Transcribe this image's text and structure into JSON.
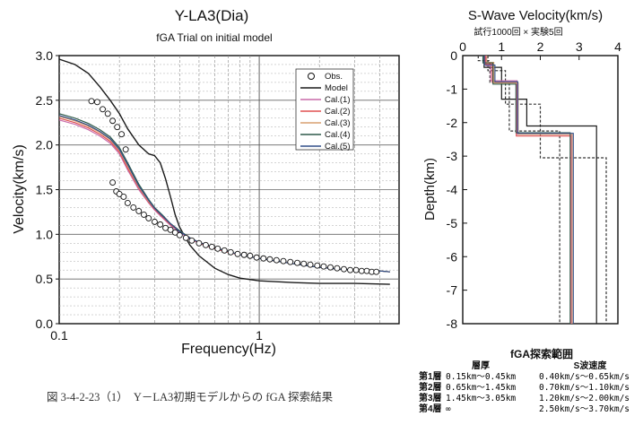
{
  "caption": "図 3-4-2-23（1）　Y－LA3初期モデルからの fGA 探索結果",
  "chart_data": [
    {
      "type": "line",
      "title": "Y-LA3(Dia)",
      "subtitle": "fGA Trial on initial model",
      "xlabel": "Frequency(Hz)",
      "ylabel": "Velocity(km/s)",
      "xscale": "log",
      "xlim": [
        0.1,
        5
      ],
      "ylim": [
        0,
        3
      ],
      "xticks": [
        {
          "v": 0.1,
          "label": "0.1"
        },
        {
          "v": 1,
          "label": "1"
        }
      ],
      "yticks": [
        {
          "v": 0,
          "label": "0.0"
        },
        {
          "v": 0.5,
          "label": "0.5"
        },
        {
          "v": 1,
          "label": "1.0"
        },
        {
          "v": 1.5,
          "label": "1.5"
        },
        {
          "v": 2,
          "label": "2.0"
        },
        {
          "v": 2.5,
          "label": "2.5"
        },
        {
          "v": 3,
          "label": "3.0"
        }
      ],
      "grid": true,
      "legend_position": "top-right",
      "observed": {
        "name": "Obs.",
        "x": [
          0.145,
          0.155,
          0.165,
          0.175,
          0.185,
          0.195,
          0.205,
          0.215,
          0.185,
          0.193,
          0.2,
          0.21,
          0.22,
          0.235,
          0.25,
          0.265,
          0.28,
          0.3,
          0.32,
          0.34,
          0.36,
          0.38,
          0.4,
          0.43,
          0.46,
          0.5,
          0.54,
          0.58,
          0.62,
          0.67,
          0.72,
          0.78,
          0.84,
          0.9,
          0.97,
          1.05,
          1.13,
          1.22,
          1.32,
          1.43,
          1.55,
          1.67,
          1.8,
          1.95,
          2.1,
          2.27,
          2.45,
          2.65,
          2.85,
          3.05,
          3.25,
          3.45,
          3.65,
          3.85
        ],
        "y": [
          2.49,
          2.48,
          2.4,
          2.35,
          2.27,
          2.2,
          2.12,
          1.95,
          1.58,
          1.48,
          1.45,
          1.42,
          1.35,
          1.3,
          1.26,
          1.22,
          1.18,
          1.14,
          1.11,
          1.07,
          1.05,
          1.02,
          0.99,
          0.96,
          0.93,
          0.9,
          0.88,
          0.86,
          0.84,
          0.82,
          0.8,
          0.78,
          0.77,
          0.76,
          0.74,
          0.73,
          0.72,
          0.71,
          0.7,
          0.69,
          0.68,
          0.67,
          0.66,
          0.65,
          0.64,
          0.63,
          0.62,
          0.61,
          0.6,
          0.6,
          0.59,
          0.59,
          0.58,
          0.58
        ]
      },
      "series": [
        {
          "name": "Model",
          "color": "#1a1a1a",
          "x": [
            0.1,
            0.12,
            0.14,
            0.16,
            0.18,
            0.2,
            0.22,
            0.25,
            0.28,
            0.3,
            0.32,
            0.34,
            0.36,
            0.38,
            0.4,
            0.45,
            0.5,
            0.6,
            0.7,
            0.8,
            1.0,
            1.5,
            2.0,
            3.0,
            4.5
          ],
          "y": [
            2.96,
            2.9,
            2.8,
            2.65,
            2.5,
            2.35,
            2.18,
            2.0,
            1.9,
            1.88,
            1.8,
            1.62,
            1.42,
            1.22,
            1.08,
            0.88,
            0.76,
            0.62,
            0.55,
            0.51,
            0.48,
            0.46,
            0.45,
            0.45,
            0.44
          ]
        },
        {
          "name": "Cal.(1)",
          "color": "#c86aa8",
          "x": [
            0.1,
            0.12,
            0.14,
            0.16,
            0.18,
            0.2,
            0.22,
            0.25,
            0.28,
            0.3,
            0.33,
            0.36,
            0.4,
            0.45,
            0.5,
            0.6,
            0.7,
            0.8,
            1.0,
            1.3,
            1.6,
            2.0,
            2.5,
            3.0,
            4.0,
            4.5
          ],
          "y": [
            2.28,
            2.23,
            2.17,
            2.1,
            2.02,
            1.9,
            1.72,
            1.5,
            1.35,
            1.27,
            1.18,
            1.1,
            1.02,
            0.95,
            0.9,
            0.84,
            0.8,
            0.77,
            0.73,
            0.69,
            0.66,
            0.63,
            0.61,
            0.6,
            0.59,
            0.58
          ]
        },
        {
          "name": "Cal.(2)",
          "color": "#e05050",
          "x": [
            0.1,
            0.12,
            0.14,
            0.16,
            0.18,
            0.2,
            0.22,
            0.25,
            0.28,
            0.3,
            0.33,
            0.36,
            0.4,
            0.45,
            0.5,
            0.6,
            0.7,
            0.8,
            1.0,
            1.3,
            1.6,
            2.0,
            2.5,
            3.0,
            4.0,
            4.5
          ],
          "y": [
            2.3,
            2.25,
            2.19,
            2.12,
            2.04,
            1.92,
            1.74,
            1.52,
            1.36,
            1.28,
            1.19,
            1.11,
            1.03,
            0.96,
            0.9,
            0.84,
            0.8,
            0.77,
            0.73,
            0.69,
            0.66,
            0.63,
            0.61,
            0.6,
            0.59,
            0.58
          ]
        },
        {
          "name": "Cal.(3)",
          "color": "#d9a070",
          "x": [
            0.1,
            0.12,
            0.14,
            0.16,
            0.18,
            0.2,
            0.22,
            0.25,
            0.28,
            0.3,
            0.33,
            0.36,
            0.4,
            0.45,
            0.5,
            0.6,
            0.7,
            0.8,
            1.0,
            1.3,
            1.6,
            2.0,
            2.5,
            3.0,
            4.0,
            4.5
          ],
          "y": [
            2.32,
            2.27,
            2.21,
            2.14,
            2.06,
            1.94,
            1.76,
            1.53,
            1.37,
            1.29,
            1.2,
            1.12,
            1.04,
            0.96,
            0.91,
            0.85,
            0.81,
            0.77,
            0.73,
            0.69,
            0.66,
            0.63,
            0.61,
            0.6,
            0.59,
            0.58
          ]
        },
        {
          "name": "Cal.(4)",
          "color": "#2f5a4a",
          "x": [
            0.1,
            0.12,
            0.14,
            0.16,
            0.18,
            0.2,
            0.22,
            0.25,
            0.28,
            0.3,
            0.33,
            0.36,
            0.4,
            0.45,
            0.5,
            0.6,
            0.7,
            0.8,
            1.0,
            1.3,
            1.6,
            2.0,
            2.5,
            3.0,
            4.0,
            4.5
          ],
          "y": [
            2.35,
            2.3,
            2.24,
            2.17,
            2.09,
            1.97,
            1.8,
            1.56,
            1.39,
            1.3,
            1.21,
            1.12,
            1.04,
            0.96,
            0.91,
            0.85,
            0.81,
            0.77,
            0.73,
            0.69,
            0.66,
            0.63,
            0.61,
            0.6,
            0.59,
            0.58
          ]
        },
        {
          "name": "Cal.(5)",
          "color": "#304f8a",
          "x": [
            0.1,
            0.12,
            0.14,
            0.16,
            0.18,
            0.2,
            0.22,
            0.25,
            0.28,
            0.3,
            0.33,
            0.36,
            0.4,
            0.45,
            0.5,
            0.6,
            0.7,
            0.8,
            1.0,
            1.3,
            1.6,
            2.0,
            2.5,
            3.0,
            4.0,
            4.5
          ],
          "y": [
            2.33,
            2.28,
            2.22,
            2.15,
            2.07,
            1.95,
            1.78,
            1.54,
            1.38,
            1.29,
            1.2,
            1.12,
            1.03,
            0.96,
            0.91,
            0.85,
            0.81,
            0.77,
            0.73,
            0.69,
            0.66,
            0.63,
            0.61,
            0.6,
            0.59,
            0.58
          ]
        }
      ]
    },
    {
      "type": "line",
      "title": "S-Wave Velocity(km/s)",
      "subtitle": "試行1000回 × 実験5回",
      "xlabel": "",
      "ylabel": "Depth(km)",
      "xlim": [
        0,
        4
      ],
      "ylim": [
        -8,
        0
      ],
      "xticks": [
        {
          "v": 0,
          "label": "0"
        },
        {
          "v": 1,
          "label": "1"
        },
        {
          "v": 2,
          "label": "2"
        },
        {
          "v": 3,
          "label": "3"
        },
        {
          "v": 4,
          "label": "4"
        }
      ],
      "yticks": [
        {
          "v": 0,
          "label": "0"
        },
        {
          "v": -1,
          "label": "-1"
        },
        {
          "v": -2,
          "label": "-2"
        },
        {
          "v": -3,
          "label": "-3"
        },
        {
          "v": -4,
          "label": "-4"
        },
        {
          "v": -5,
          "label": "-5"
        },
        {
          "v": -6,
          "label": "-6"
        },
        {
          "v": -7,
          "label": "-7"
        },
        {
          "v": -8,
          "label": "-8"
        }
      ],
      "grid": false,
      "profiles": [
        {
          "kind": "bound-min",
          "color": "#333333",
          "dashed": true,
          "velocity": [
            0.4,
            0.7,
            1.2,
            2.5
          ],
          "interfaces": [
            -0.15,
            -0.8,
            -2.25
          ]
        },
        {
          "kind": "bound-max",
          "color": "#333333",
          "dashed": true,
          "velocity": [
            0.65,
            1.1,
            2.0,
            3.7
          ],
          "interfaces": [
            -0.45,
            -1.45,
            -3.05
          ]
        },
        {
          "kind": "model",
          "color": "#1a1a1a",
          "dashed": false,
          "velocity": [
            0.55,
            1.0,
            1.65,
            3.45
          ],
          "interfaces": [
            -0.35,
            -1.3,
            -2.1
          ]
        },
        {
          "kind": "cal",
          "color": "#c86aa8",
          "dashed": false,
          "velocity": [
            0.6,
            0.72,
            1.4,
            2.8
          ],
          "interfaces": [
            -0.3,
            -0.75,
            -2.35
          ]
        },
        {
          "kind": "cal",
          "color": "#e05050",
          "dashed": false,
          "velocity": [
            0.58,
            0.76,
            1.38,
            2.78
          ],
          "interfaces": [
            -0.25,
            -0.8,
            -2.4
          ]
        },
        {
          "kind": "cal",
          "color": "#d9a070",
          "dashed": false,
          "velocity": [
            0.62,
            0.8,
            1.43,
            2.82
          ],
          "interfaces": [
            -0.2,
            -0.82,
            -2.35
          ]
        },
        {
          "kind": "cal",
          "color": "#2f5a4a",
          "dashed": false,
          "velocity": [
            0.52,
            0.78,
            1.37,
            2.77
          ],
          "interfaces": [
            -0.22,
            -0.85,
            -2.3
          ]
        },
        {
          "kind": "cal",
          "color": "#304f8a",
          "dashed": false,
          "velocity": [
            0.56,
            0.83,
            1.42,
            2.85
          ],
          "interfaces": [
            -0.28,
            -0.78,
            -2.32
          ]
        }
      ]
    }
  ],
  "search_table": {
    "title": "fGA探索範囲",
    "headers": [
      "層厚",
      "S波速度"
    ],
    "rows": [
      {
        "layer": "第1層",
        "thickness": "0.15km～0.45km",
        "velocity": "0.40km/s～0.65km/s"
      },
      {
        "layer": "第2層",
        "thickness": "0.65km～1.45km",
        "velocity": "0.70km/s～1.10km/s"
      },
      {
        "layer": "第3層",
        "thickness": "1.45km～3.05km",
        "velocity": "1.20km/s～2.00km/s"
      },
      {
        "layer": "第4層",
        "thickness": "∞",
        "velocity": "2.50km/s～3.70km/s"
      }
    ]
  }
}
